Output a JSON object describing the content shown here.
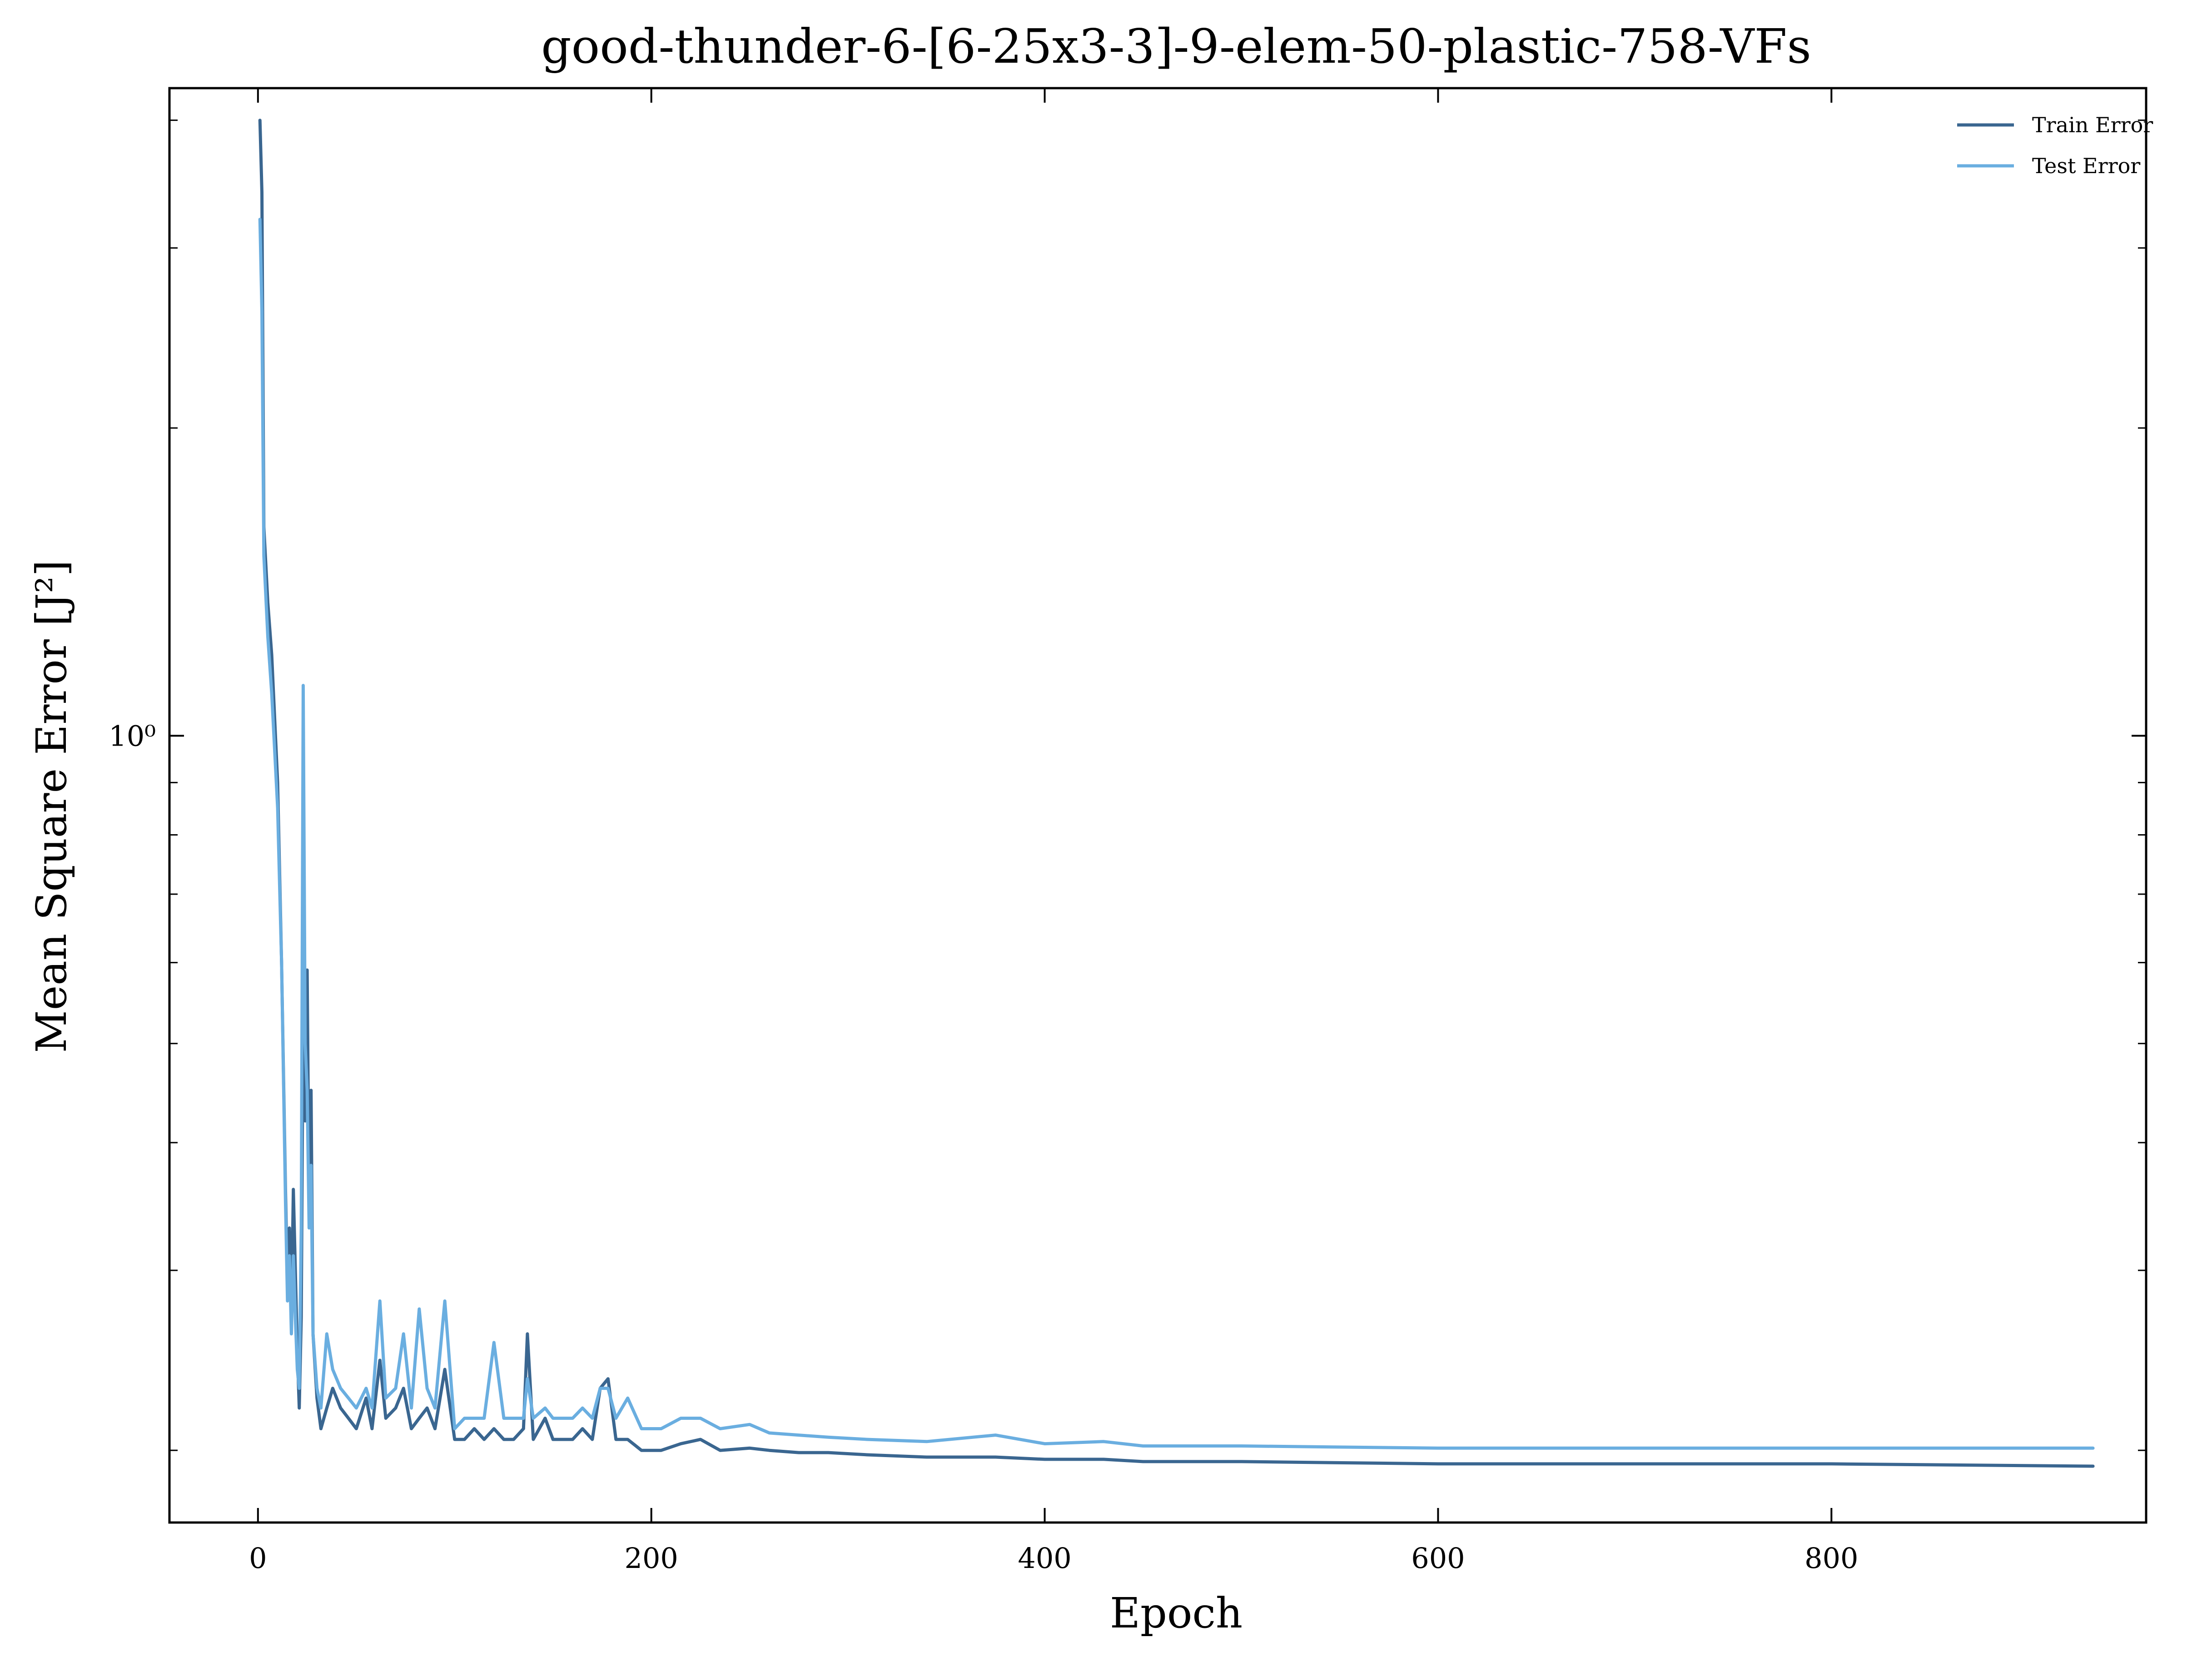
{
  "chart_data": {
    "type": "line",
    "title": "good-thunder-6-[6-25x3-3]-9-elem-50-plastic-758-VFs",
    "xlabel": "Epoch",
    "ylabel": "Mean Square Error [J²]",
    "yscale": "log",
    "xlim": [
      -45,
      960
    ],
    "ylim": [
      0.17,
      4.3
    ],
    "x_ticks": [
      0,
      200,
      400,
      600,
      800
    ],
    "y_major_ticks": [
      1
    ],
    "y_major_tick_labels": [
      "10⁰"
    ],
    "y_minor_ticks": [
      0.2,
      0.3,
      0.4,
      0.5,
      0.6,
      0.7,
      0.8,
      0.9,
      2,
      3,
      4
    ],
    "grid": false,
    "legend": "top-right",
    "series": [
      {
        "name": "Train Error",
        "color": "#3a6690",
        "points": [
          [
            1,
            4.0
          ],
          [
            2,
            3.4
          ],
          [
            3,
            1.6
          ],
          [
            5,
            1.35
          ],
          [
            7,
            1.2
          ],
          [
            10,
            0.9
          ],
          [
            12,
            0.6
          ],
          [
            14,
            0.36
          ],
          [
            15,
            0.29
          ],
          [
            16,
            0.33
          ],
          [
            17,
            0.27
          ],
          [
            18,
            0.36
          ],
          [
            19,
            0.3
          ],
          [
            20,
            0.25
          ],
          [
            21,
            0.22
          ],
          [
            22,
            0.27
          ],
          [
            23,
            0.55
          ],
          [
            24,
            0.42
          ],
          [
            25,
            0.59
          ],
          [
            26,
            0.35
          ],
          [
            27,
            0.45
          ],
          [
            28,
            0.26
          ],
          [
            30,
            0.225
          ],
          [
            32,
            0.21
          ],
          [
            35,
            0.22
          ],
          [
            38,
            0.23
          ],
          [
            42,
            0.22
          ],
          [
            46,
            0.215
          ],
          [
            50,
            0.21
          ],
          [
            55,
            0.225
          ],
          [
            58,
            0.21
          ],
          [
            62,
            0.245
          ],
          [
            65,
            0.215
          ],
          [
            70,
            0.22
          ],
          [
            74,
            0.23
          ],
          [
            78,
            0.21
          ],
          [
            82,
            0.215
          ],
          [
            86,
            0.22
          ],
          [
            90,
            0.21
          ],
          [
            95,
            0.24
          ],
          [
            100,
            0.205
          ],
          [
            105,
            0.205
          ],
          [
            110,
            0.21
          ],
          [
            115,
            0.205
          ],
          [
            120,
            0.21
          ],
          [
            125,
            0.205
          ],
          [
            130,
            0.205
          ],
          [
            135,
            0.21
          ],
          [
            137,
            0.26
          ],
          [
            140,
            0.205
          ],
          [
            146,
            0.215
          ],
          [
            150,
            0.205
          ],
          [
            155,
            0.205
          ],
          [
            160,
            0.205
          ],
          [
            165,
            0.21
          ],
          [
            170,
            0.205
          ],
          [
            174,
            0.23
          ],
          [
            178,
            0.235
          ],
          [
            182,
            0.205
          ],
          [
            188,
            0.205
          ],
          [
            195,
            0.2
          ],
          [
            205,
            0.2
          ],
          [
            215,
            0.203
          ],
          [
            225,
            0.205
          ],
          [
            235,
            0.2
          ],
          [
            250,
            0.201
          ],
          [
            260,
            0.2
          ],
          [
            275,
            0.199
          ],
          [
            290,
            0.199
          ],
          [
            310,
            0.198
          ],
          [
            340,
            0.197
          ],
          [
            375,
            0.197
          ],
          [
            400,
            0.196
          ],
          [
            430,
            0.196
          ],
          [
            450,
            0.195
          ],
          [
            500,
            0.195
          ],
          [
            600,
            0.194
          ],
          [
            700,
            0.194
          ],
          [
            800,
            0.194
          ],
          [
            933,
            0.193
          ]
        ]
      },
      {
        "name": "Test Error",
        "color": "#6aaee0",
        "points": [
          [
            1,
            3.2
          ],
          [
            2,
            2.6
          ],
          [
            3,
            1.5
          ],
          [
            5,
            1.25
          ],
          [
            7,
            1.1
          ],
          [
            10,
            0.85
          ],
          [
            12,
            0.6
          ],
          [
            14,
            0.35
          ],
          [
            15,
            0.28
          ],
          [
            16,
            0.31
          ],
          [
            17,
            0.26
          ],
          [
            18,
            0.31
          ],
          [
            19,
            0.27
          ],
          [
            20,
            0.24
          ],
          [
            21,
            0.23
          ],
          [
            22,
            0.33
          ],
          [
            23,
            1.12
          ],
          [
            24,
            0.5
          ],
          [
            25,
            0.45
          ],
          [
            26,
            0.33
          ],
          [
            27,
            0.38
          ],
          [
            28,
            0.26
          ],
          [
            30,
            0.23
          ],
          [
            32,
            0.22
          ],
          [
            35,
            0.26
          ],
          [
            38,
            0.24
          ],
          [
            42,
            0.23
          ],
          [
            46,
            0.225
          ],
          [
            50,
            0.22
          ],
          [
            55,
            0.23
          ],
          [
            58,
            0.22
          ],
          [
            62,
            0.28
          ],
          [
            65,
            0.225
          ],
          [
            70,
            0.23
          ],
          [
            74,
            0.26
          ],
          [
            78,
            0.22
          ],
          [
            82,
            0.275
          ],
          [
            86,
            0.23
          ],
          [
            90,
            0.22
          ],
          [
            95,
            0.28
          ],
          [
            100,
            0.21
          ],
          [
            105,
            0.215
          ],
          [
            110,
            0.215
          ],
          [
            115,
            0.215
          ],
          [
            120,
            0.255
          ],
          [
            125,
            0.215
          ],
          [
            130,
            0.215
          ],
          [
            135,
            0.215
          ],
          [
            137,
            0.235
          ],
          [
            140,
            0.215
          ],
          [
            146,
            0.22
          ],
          [
            150,
            0.215
          ],
          [
            155,
            0.215
          ],
          [
            160,
            0.215
          ],
          [
            165,
            0.22
          ],
          [
            170,
            0.215
          ],
          [
            174,
            0.23
          ],
          [
            178,
            0.23
          ],
          [
            182,
            0.215
          ],
          [
            188,
            0.225
          ],
          [
            195,
            0.21
          ],
          [
            205,
            0.21
          ],
          [
            215,
            0.215
          ],
          [
            225,
            0.215
          ],
          [
            235,
            0.21
          ],
          [
            250,
            0.212
          ],
          [
            260,
            0.208
          ],
          [
            275,
            0.207
          ],
          [
            290,
            0.206
          ],
          [
            310,
            0.205
          ],
          [
            340,
            0.204
          ],
          [
            375,
            0.207
          ],
          [
            400,
            0.203
          ],
          [
            430,
            0.204
          ],
          [
            450,
            0.202
          ],
          [
            500,
            0.202
          ],
          [
            600,
            0.201
          ],
          [
            700,
            0.201
          ],
          [
            800,
            0.201
          ],
          [
            933,
            0.201
          ]
        ]
      }
    ]
  }
}
